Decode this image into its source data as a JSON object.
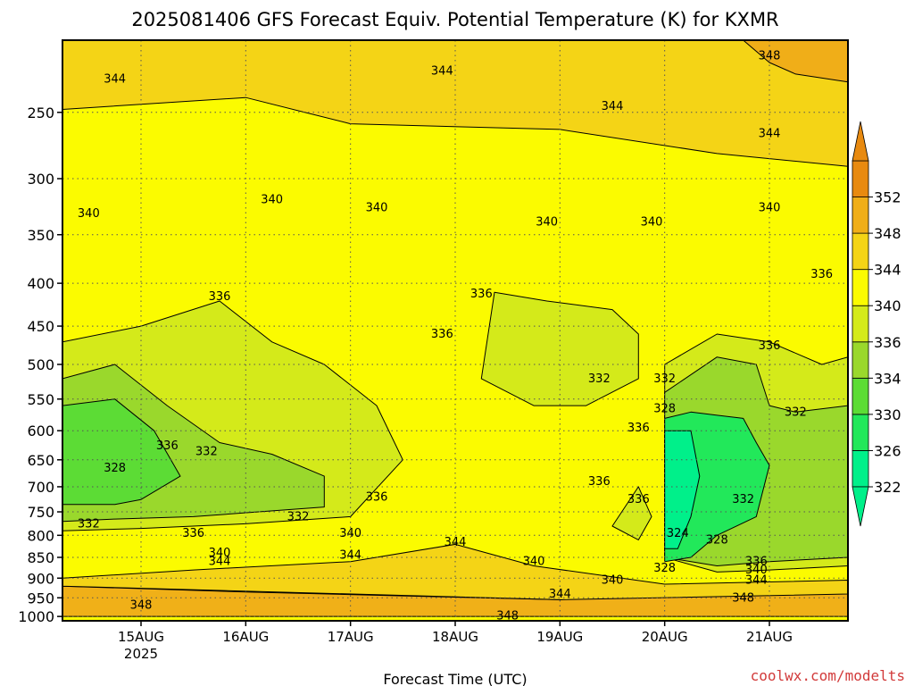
{
  "chart_data": {
    "type": "heatmap",
    "title": "2025081406 GFS Forecast Equiv. Potential Temperature (K) for KXMR",
    "xlabel": "Forecast Time (UTC)",
    "ylabel": "",
    "y_scale": "log-pressure",
    "y_ticks": [
      250,
      300,
      350,
      400,
      450,
      500,
      550,
      600,
      650,
      700,
      750,
      800,
      850,
      900,
      950,
      1000
    ],
    "ylim": [
      1012,
      205
    ],
    "x_range": [
      "2025-08-14T06",
      "2025-08-21T18"
    ],
    "x_ticks": [
      {
        "t": "2025-08-15T00",
        "label": "15AUG",
        "sublabel": "2025"
      },
      {
        "t": "2025-08-16T00",
        "label": "16AUG",
        "sublabel": ""
      },
      {
        "t": "2025-08-17T00",
        "label": "17AUG",
        "sublabel": ""
      },
      {
        "t": "2025-08-18T00",
        "label": "18AUG",
        "sublabel": ""
      },
      {
        "t": "2025-08-19T00",
        "label": "19AUG",
        "sublabel": ""
      },
      {
        "t": "2025-08-20T00",
        "label": "20AUG",
        "sublabel": ""
      },
      {
        "t": "2025-08-21T00",
        "label": "21AUG",
        "sublabel": ""
      }
    ],
    "grid": true,
    "colorbar": {
      "labels": [
        322,
        326,
        330,
        334,
        336,
        340,
        344,
        348,
        352
      ],
      "colors": [
        "#00f08a",
        "#22e85a",
        "#5cdc35",
        "#9ad82c",
        "#d4ea1a",
        "#fbfb00",
        "#f4d416",
        "#f0ae18",
        "#e88a10"
      ],
      "extends": "both"
    },
    "fill_regions": [
      {
        "value": 348,
        "color": "#f0b018",
        "points": [
          [
            "2025-08-14T06",
            1000
          ],
          [
            "2025-08-21T18",
            1000
          ],
          [
            "2025-08-21T18",
            940
          ],
          [
            "2025-08-20T12",
            930
          ],
          [
            "2025-08-19T00",
            955
          ],
          [
            "2025-08-17T12",
            945
          ],
          [
            "2025-08-16T00",
            935
          ],
          [
            "2025-08-14T06",
            920
          ]
        ]
      },
      {
        "value": 344,
        "color": "#f4d416",
        "points": [
          [
            "2025-08-14T06",
            900
          ],
          [
            "2025-08-15T12",
            880
          ],
          [
            "2025-08-17T00",
            860
          ],
          [
            "2025-08-18T00",
            820
          ],
          [
            "2025-08-18T18",
            870
          ],
          [
            "2025-08-20T00",
            915
          ],
          [
            "2025-08-21T18",
            905
          ],
          [
            "2025-08-21T18",
            940
          ],
          [
            "2025-08-19T00",
            955
          ],
          [
            "2025-08-14T06",
            920
          ]
        ]
      },
      {
        "value": 344,
        "color": "#f4d416",
        "points": [
          [
            "2025-08-14T06",
            205
          ],
          [
            "2025-08-21T18",
            205
          ],
          [
            "2025-08-21T18",
            290
          ],
          [
            "2025-08-20T12",
            280
          ],
          [
            "2025-08-19T00",
            262
          ],
          [
            "2025-08-17T00",
            258
          ],
          [
            "2025-08-16T00",
            240
          ],
          [
            "2025-08-14T06",
            248
          ]
        ]
      },
      {
        "value": 348,
        "color": "#f0ae18",
        "points": [
          [
            "2025-08-20T18",
            205
          ],
          [
            "2025-08-21T18",
            205
          ],
          [
            "2025-08-21T18",
            230
          ],
          [
            "2025-08-21T06",
            225
          ],
          [
            "2025-08-21T00",
            218
          ]
        ]
      },
      {
        "value": 336,
        "color": "#d4ea1a",
        "points": [
          [
            "2025-08-14T06",
            790
          ],
          [
            "2025-08-14T06",
            470
          ],
          [
            "2025-08-15T00",
            450
          ],
          [
            "2025-08-15T18",
            420
          ],
          [
            "2025-08-16T06",
            470
          ],
          [
            "2025-08-16T18",
            500
          ],
          [
            "2025-08-17T06",
            560
          ],
          [
            "2025-08-17T12",
            650
          ],
          [
            "2025-08-17T00",
            760
          ],
          [
            "2025-08-16T00",
            775
          ],
          [
            "2025-08-15T00",
            785
          ]
        ]
      },
      {
        "value": 332,
        "color": "#9ad82c",
        "points": [
          [
            "2025-08-14T06",
            770
          ],
          [
            "2025-08-14T06",
            520
          ],
          [
            "2025-08-14T18",
            500
          ],
          [
            "2025-08-15T06",
            560
          ],
          [
            "2025-08-15T18",
            620
          ],
          [
            "2025-08-16T06",
            640
          ],
          [
            "2025-08-16T18",
            680
          ],
          [
            "2025-08-16T18",
            740
          ],
          [
            "2025-08-15T12",
            760
          ],
          [
            "2025-08-14T18",
            765
          ]
        ]
      },
      {
        "value": 328,
        "color": "#5cdc35",
        "points": [
          [
            "2025-08-14T06",
            735
          ],
          [
            "2025-08-14T06",
            560
          ],
          [
            "2025-08-14T18",
            550
          ],
          [
            "2025-08-15T03",
            600
          ],
          [
            "2025-08-15T09",
            680
          ],
          [
            "2025-08-15T00",
            725
          ],
          [
            "2025-08-14T18",
            735
          ]
        ]
      },
      {
        "value": 336,
        "color": "#d4ea1a",
        "points": [
          [
            "2025-08-18T06",
            520
          ],
          [
            "2025-08-18T09",
            410
          ],
          [
            "2025-08-18T21",
            420
          ],
          [
            "2025-08-19T12",
            430
          ],
          [
            "2025-08-19T18",
            460
          ],
          [
            "2025-08-19T18",
            520
          ],
          [
            "2025-08-19T06",
            560
          ],
          [
            "2025-08-18T18",
            560
          ]
        ]
      },
      {
        "value": 336,
        "color": "#d4ea1a",
        "points": [
          [
            "2025-08-19T12",
            780
          ],
          [
            "2025-08-19T18",
            700
          ],
          [
            "2025-08-19T21",
            760
          ],
          [
            "2025-08-19T18",
            810
          ]
        ]
      },
      {
        "value": 336,
        "color": "#d4ea1a",
        "points": [
          [
            "2025-08-20T00",
            850
          ],
          [
            "2025-08-20T00",
            500
          ],
          [
            "2025-08-20T12",
            460
          ],
          [
            "2025-08-21T00",
            470
          ],
          [
            "2025-08-21T12",
            500
          ],
          [
            "2025-08-21T18",
            490
          ],
          [
            "2025-08-21T18",
            870
          ],
          [
            "2025-08-21T00",
            880
          ],
          [
            "2025-08-20T12",
            885
          ]
        ]
      },
      {
        "value": 332,
        "color": "#9ad82c",
        "points": [
          [
            "2025-08-20T00",
            850
          ],
          [
            "2025-08-20T00",
            540
          ],
          [
            "2025-08-20T12",
            490
          ],
          [
            "2025-08-20T21",
            500
          ],
          [
            "2025-08-21T00",
            560
          ],
          [
            "2025-08-21T06",
            570
          ],
          [
            "2025-08-21T18",
            560
          ],
          [
            "2025-08-21T18",
            850
          ],
          [
            "2025-08-21T00",
            860
          ],
          [
            "2025-08-20T12",
            870
          ]
        ]
      },
      {
        "value": 326,
        "color": "#22e85a",
        "points": [
          [
            "2025-08-20T00",
            860
          ],
          [
            "2025-08-20T00",
            580
          ],
          [
            "2025-08-20T06",
            570
          ],
          [
            "2025-08-20T12",
            575
          ],
          [
            "2025-08-20T18",
            580
          ],
          [
            "2025-08-20T21",
            620
          ],
          [
            "2025-08-21T00",
            660
          ],
          [
            "2025-08-20T21",
            760
          ],
          [
            "2025-08-20T12",
            800
          ],
          [
            "2025-08-20T06",
            850
          ]
        ]
      },
      {
        "value": 322,
        "color": "#00f08a",
        "points": [
          [
            "2025-08-20T00",
            830
          ],
          [
            "2025-08-20T00",
            600
          ],
          [
            "2025-08-20T06",
            600
          ],
          [
            "2025-08-20T08",
            680
          ],
          [
            "2025-08-20T06",
            760
          ],
          [
            "2025-08-20T03",
            830
          ]
        ]
      }
    ],
    "contour_labels": [
      {
        "t": "2025-08-14T18",
        "p": 228,
        "value": "344"
      },
      {
        "t": "2025-08-17T21",
        "p": 223,
        "value": "344"
      },
      {
        "t": "2025-08-19T12",
        "p": 246,
        "value": "344"
      },
      {
        "t": "2025-08-21T00",
        "p": 265,
        "value": "344"
      },
      {
        "t": "2025-08-21T00",
        "p": 214,
        "value": "348"
      },
      {
        "t": "2025-08-14T12",
        "p": 330,
        "value": "340"
      },
      {
        "t": "2025-08-16T06",
        "p": 318,
        "value": "340"
      },
      {
        "t": "2025-08-17T06",
        "p": 325,
        "value": "340"
      },
      {
        "t": "2025-08-18T21",
        "p": 338,
        "value": "340"
      },
      {
        "t": "2025-08-19T21",
        "p": 338,
        "value": "340"
      },
      {
        "t": "2025-08-21T00",
        "p": 325,
        "value": "340"
      },
      {
        "t": "2025-08-21T12",
        "p": 390,
        "value": "336"
      },
      {
        "t": "2025-08-15T18",
        "p": 415,
        "value": "336"
      },
      {
        "t": "2025-08-18T06",
        "p": 412,
        "value": "336"
      },
      {
        "t": "2025-08-17T21",
        "p": 460,
        "value": "336"
      },
      {
        "t": "2025-08-21T00",
        "p": 475,
        "value": "336"
      },
      {
        "t": "2025-08-19T09",
        "p": 520,
        "value": "332"
      },
      {
        "t": "2025-08-20T00",
        "p": 520,
        "value": "332"
      },
      {
        "t": "2025-08-20T00",
        "p": 565,
        "value": "328"
      },
      {
        "t": "2025-08-19T18",
        "p": 595,
        "value": "336"
      },
      {
        "t": "2025-08-21T06",
        "p": 570,
        "value": "332"
      },
      {
        "t": "2025-08-15T06",
        "p": 625,
        "value": "336"
      },
      {
        "t": "2025-08-15T15",
        "p": 635,
        "value": "332"
      },
      {
        "t": "2025-08-14T18",
        "p": 665,
        "value": "328"
      },
      {
        "t": "2025-08-19T09",
        "p": 690,
        "value": "336"
      },
      {
        "t": "2025-08-19T18",
        "p": 725,
        "value": "336"
      },
      {
        "t": "2025-08-17T06",
        "p": 720,
        "value": "336"
      },
      {
        "t": "2025-08-16T12",
        "p": 760,
        "value": "332"
      },
      {
        "t": "2025-08-20T18",
        "p": 725,
        "value": "332"
      },
      {
        "t": "2025-08-14T12",
        "p": 775,
        "value": "332"
      },
      {
        "t": "2025-08-15T12",
        "p": 795,
        "value": "336"
      },
      {
        "t": "2025-08-20T03",
        "p": 795,
        "value": "324"
      },
      {
        "t": "2025-08-20T12",
        "p": 810,
        "value": "328"
      },
      {
        "t": "2025-08-17T00",
        "p": 795,
        "value": "340"
      },
      {
        "t": "2025-08-18T00",
        "p": 815,
        "value": "344"
      },
      {
        "t": "2025-08-15T18",
        "p": 840,
        "value": "340"
      },
      {
        "t": "2025-08-17T00",
        "p": 845,
        "value": "344"
      },
      {
        "t": "2025-08-15T18",
        "p": 860,
        "value": "344"
      },
      {
        "t": "2025-08-18T18",
        "p": 860,
        "value": "340"
      },
      {
        "t": "2025-08-20T00",
        "p": 875,
        "value": "328"
      },
      {
        "t": "2025-08-20T21",
        "p": 860,
        "value": "336"
      },
      {
        "t": "2025-08-20T21",
        "p": 880,
        "value": "340"
      },
      {
        "t": "2025-08-20T21",
        "p": 905,
        "value": "344"
      },
      {
        "t": "2025-08-19T12",
        "p": 905,
        "value": "340"
      },
      {
        "t": "2025-08-19T00",
        "p": 940,
        "value": "344"
      },
      {
        "t": "2025-08-20T18",
        "p": 950,
        "value": "348"
      },
      {
        "t": "2025-08-15T00",
        "p": 970,
        "value": "348"
      },
      {
        "t": "2025-08-18T12",
        "p": 998,
        "value": "348"
      }
    ]
  },
  "footer": {
    "xlabel": "Forecast Time (UTC)",
    "credit": "coolwx.com/modelts"
  }
}
